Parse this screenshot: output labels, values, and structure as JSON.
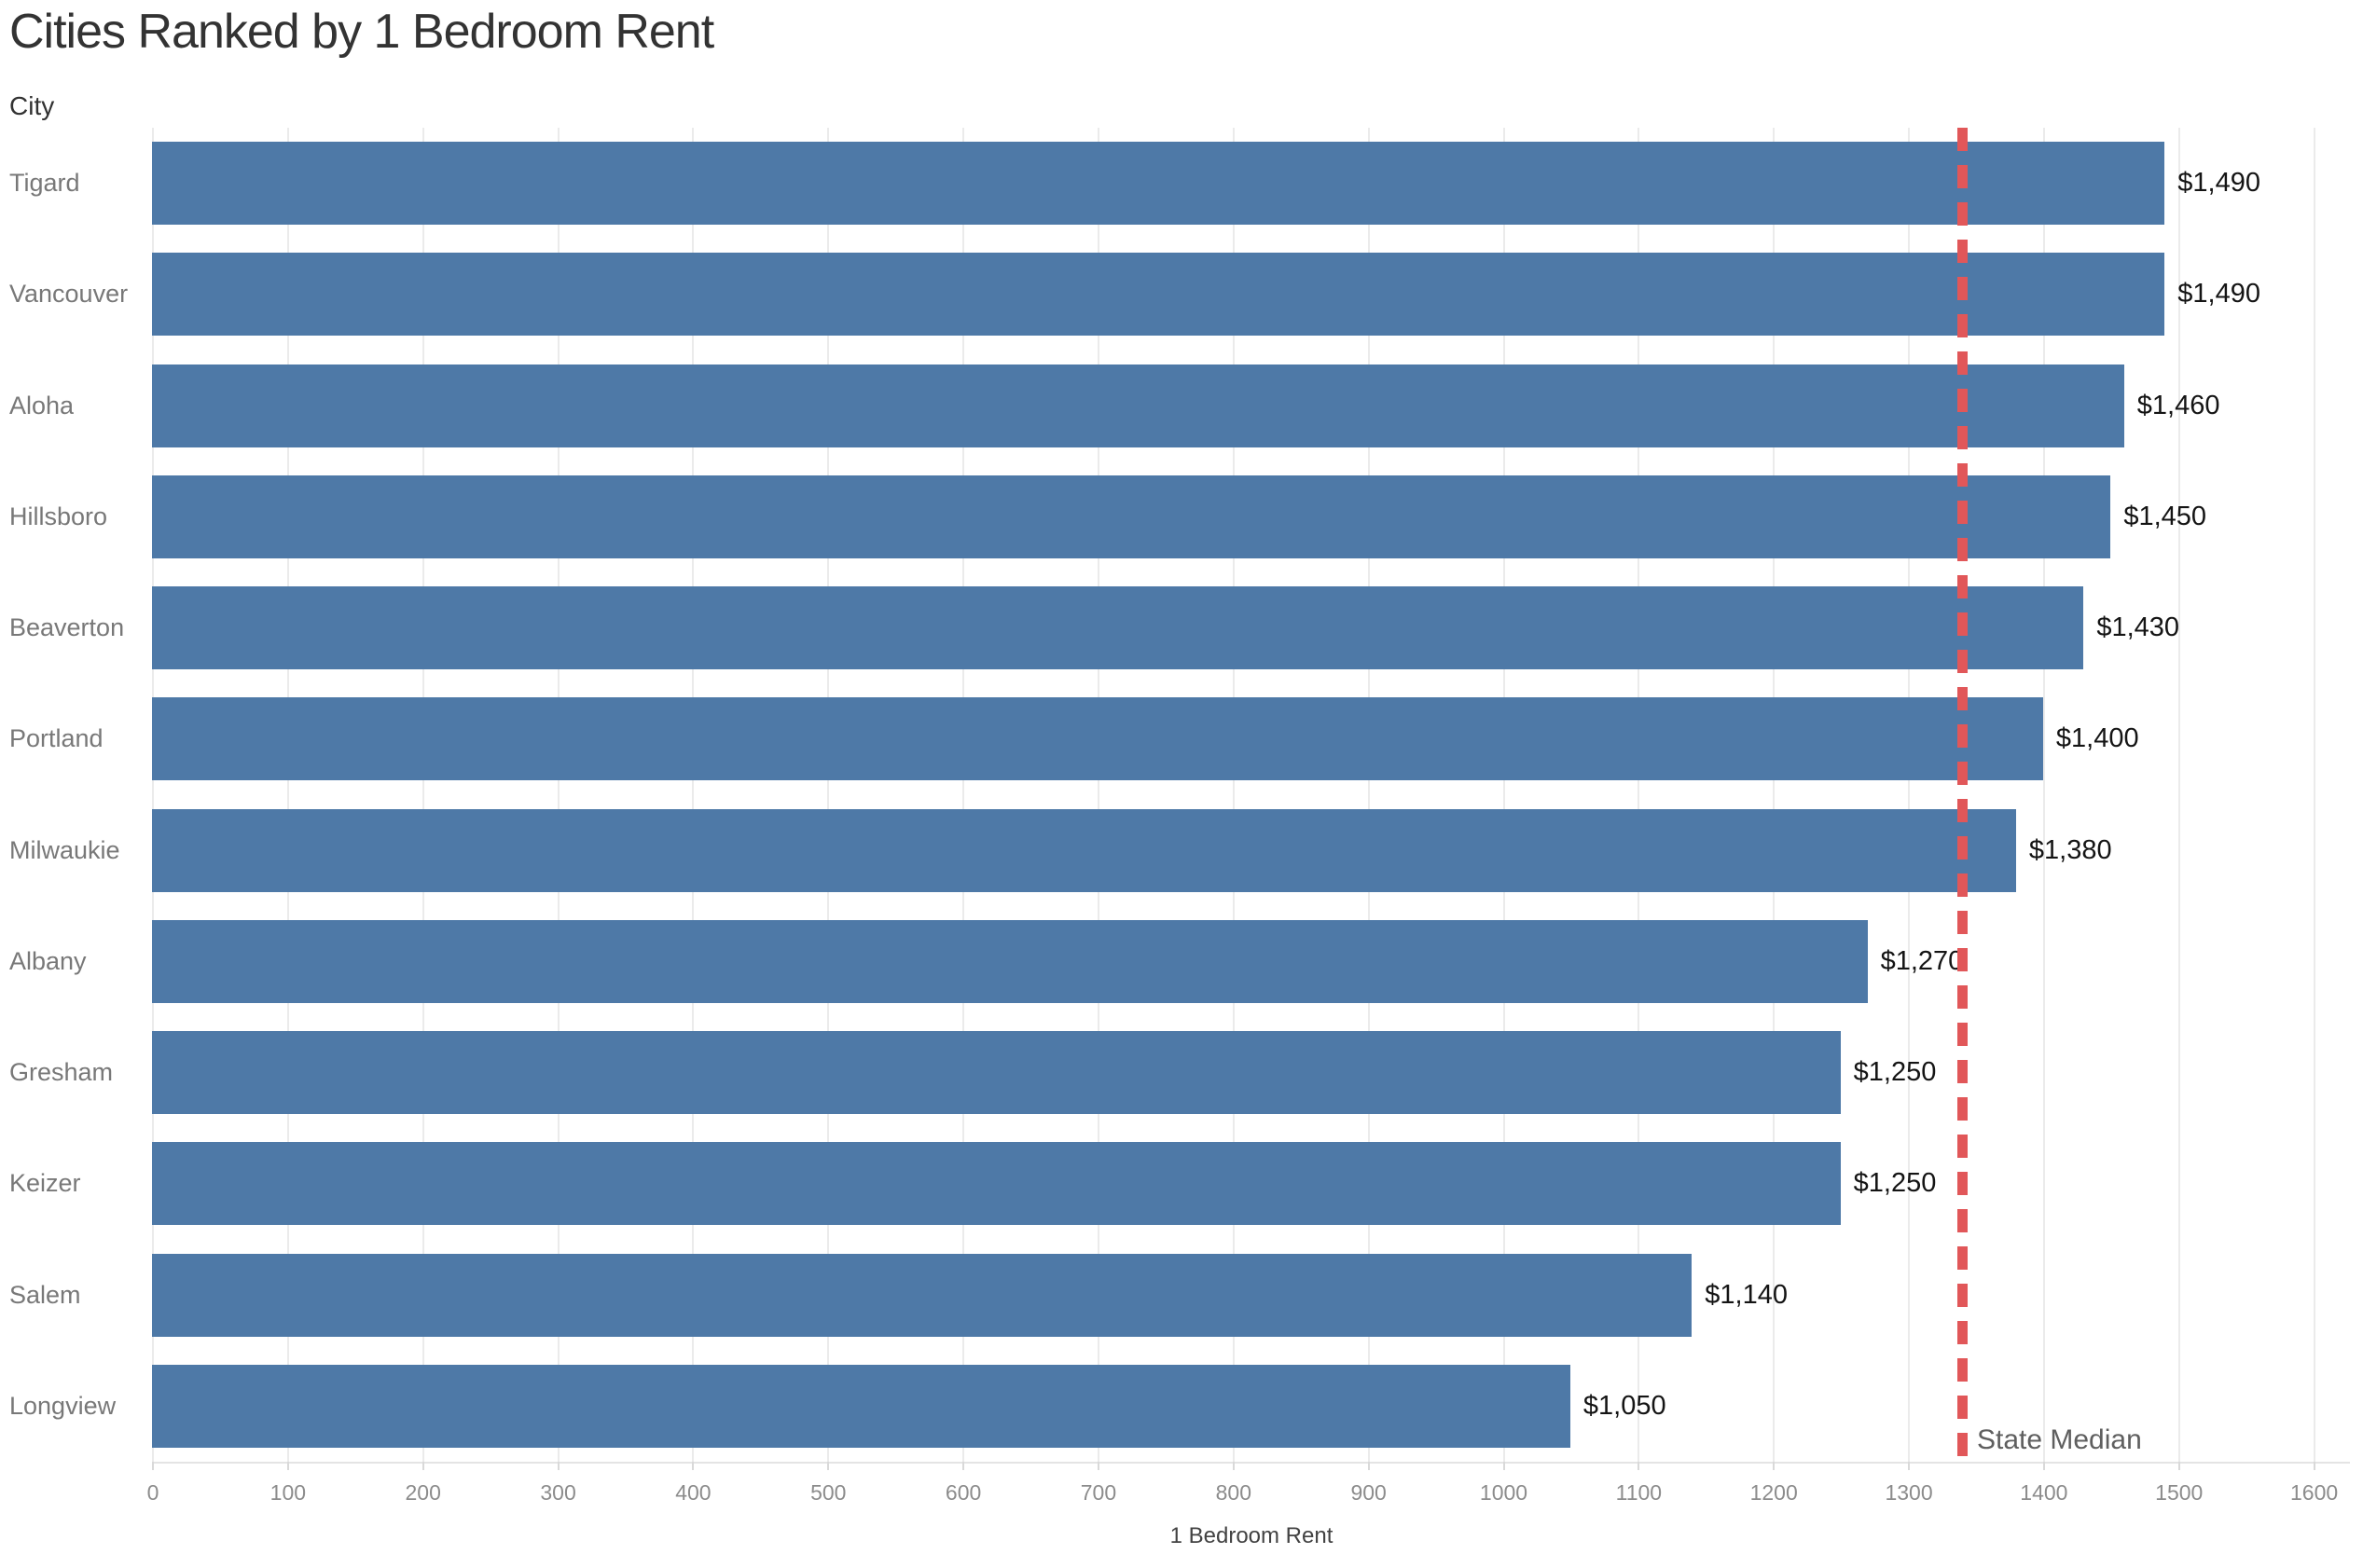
{
  "title": "Cities Ranked by 1 Bedroom Rent",
  "y_axis_header": "City",
  "colors": {
    "bar": "#4e79a7",
    "reference_line": "#e15759",
    "title_text": "#333333",
    "category_text": "#787878",
    "value_text": "#141414",
    "tick_text": "#8c8c8c",
    "gridline": "#ebebeb"
  },
  "chart_data": {
    "type": "bar",
    "orientation": "horizontal",
    "title": "Cities Ranked by 1 Bedroom Rent",
    "xlabel": "1 Bedroom Rent",
    "ylabel": "City",
    "categories": [
      "Tigard",
      "Vancouver",
      "Aloha",
      "Hillsboro",
      "Beaverton",
      "Portland",
      "Milwaukie",
      "Albany",
      "Gresham",
      "Keizer",
      "Salem",
      "Longview"
    ],
    "values": [
      1490,
      1490,
      1460,
      1450,
      1430,
      1400,
      1380,
      1270,
      1250,
      1250,
      1140,
      1050
    ],
    "value_labels": [
      "$1,490",
      "$1,490",
      "$1,460",
      "$1,450",
      "$1,430",
      "$1,400",
      "$1,380",
      "$1,270",
      "$1,250",
      "$1,250",
      "$1,140",
      "$1,050"
    ],
    "xlim": [
      0,
      1600
    ],
    "xticks": [
      0,
      100,
      200,
      300,
      400,
      500,
      600,
      700,
      800,
      900,
      1000,
      1100,
      1200,
      1300,
      1400,
      1500,
      1600
    ],
    "xtick_labels": [
      "0",
      "100",
      "200",
      "300",
      "400",
      "500",
      "600",
      "700",
      "800",
      "900",
      "1000",
      "1100",
      "1200",
      "1300",
      "1400",
      "1500",
      "1600"
    ],
    "grid": true,
    "legend": "none",
    "reference_line": {
      "label": "State Median",
      "value": 1340,
      "style": "dashed"
    }
  }
}
